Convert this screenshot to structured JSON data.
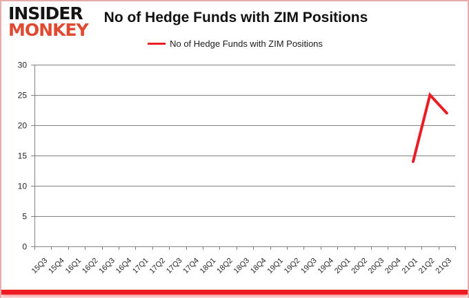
{
  "logo": {
    "top": "INSIDER",
    "bottom": "MONKEY"
  },
  "title": "No of Hedge Funds with ZIM Positions",
  "colors": {
    "series_red": "#ec1c24",
    "grid_gray": "#808080",
    "tick_text": "#262626",
    "logo_black": "#141414",
    "logo_red": "#e04a31",
    "frame_pink": "#e7abab",
    "bottom_bar_red": "#ee1b22"
  },
  "chart_data": {
    "type": "line",
    "title": "No of Hedge Funds with ZIM Positions",
    "categories": [
      "15Q3",
      "15Q4",
      "16Q1",
      "16Q2",
      "16Q3",
      "16Q4",
      "17Q1",
      "17Q2",
      "17Q3",
      "17Q4",
      "18Q1",
      "18Q2",
      "18Q3",
      "18Q4",
      "19Q1",
      "19Q2",
      "19Q3",
      "19Q4",
      "20Q1",
      "20Q2",
      "20Q3",
      "20Q4",
      "21Q1",
      "21Q2",
      "21Q3"
    ],
    "series": [
      {
        "name": "No of Hedge Funds with ZIM Positions",
        "color": "#ec1c24",
        "values": [
          null,
          null,
          null,
          null,
          null,
          null,
          null,
          null,
          null,
          null,
          null,
          null,
          null,
          null,
          null,
          null,
          null,
          null,
          null,
          null,
          null,
          null,
          14,
          25,
          22
        ]
      }
    ],
    "xlabel": "",
    "ylabel": "",
    "ylim": [
      0,
      30
    ],
    "yticks": [
      0,
      5,
      10,
      15,
      20,
      25,
      30
    ],
    "grid": "horizontal",
    "legend_position": "top-center"
  }
}
